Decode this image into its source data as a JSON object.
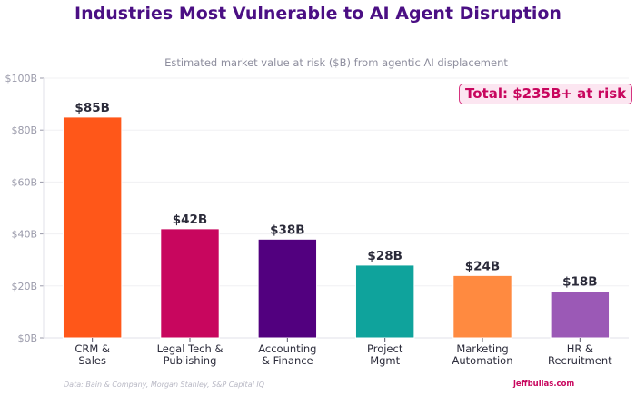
{
  "chart_data": {
    "type": "bar",
    "title": "Industries Most Vulnerable to AI Agent Disruption",
    "subtitle": "Estimated market value at risk ($B) from agentic AI displacement",
    "xlabel": "",
    "ylabel": "",
    "categories": [
      [
        "CRM &",
        "Sales"
      ],
      [
        "Legal Tech &",
        "Publishing"
      ],
      [
        "Accounting",
        "& Finance"
      ],
      [
        "Project",
        "Mgmt"
      ],
      [
        "Marketing",
        "Automation"
      ],
      [
        "HR &",
        "Recruitment"
      ]
    ],
    "values": [
      85,
      42,
      38,
      28,
      24,
      18
    ],
    "data_labels": [
      "$85B",
      "$42B",
      "$38B",
      "$28B",
      "$24B",
      "$18B"
    ],
    "colors": [
      "#FF5719",
      "#C8065E",
      "#52007F",
      "#0FA39C",
      "#FF8A40",
      "#9B59B6"
    ],
    "ylim": [
      0,
      100
    ],
    "yticks": [
      0,
      20,
      40,
      60,
      80,
      100
    ],
    "ytick_labels": [
      "$0B",
      "$20B",
      "$40B",
      "$60B",
      "$80B",
      "$100B"
    ],
    "grid": true,
    "annotation": "Total: $235B+ at risk",
    "annotation_placement": "top-right",
    "source": "Data: Bain & Company, Morgan Stanley, S&P Capital IQ",
    "brand": "jeffbullas.com"
  }
}
